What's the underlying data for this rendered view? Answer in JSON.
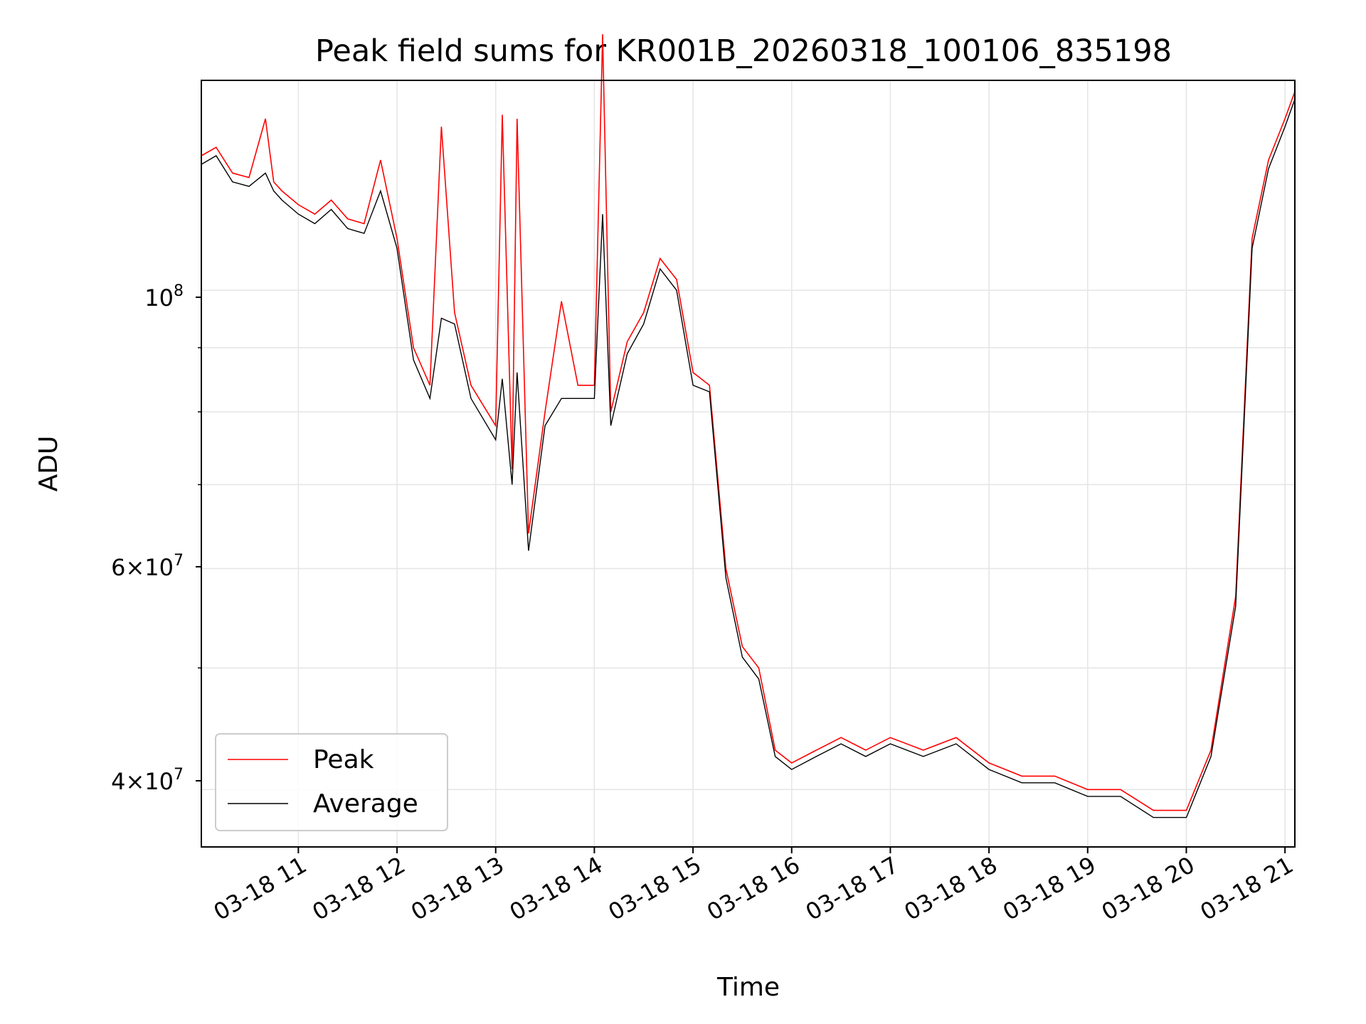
{
  "chart_data": {
    "type": "line",
    "title": "Peak field sums for KR001B_20260318_100106_835198",
    "xlabel": "Time",
    "ylabel": "ADU",
    "yscale": "log",
    "ylim": [
      36000000,
      147000000
    ],
    "xlim": [
      "03-18 10:01",
      "03-18 21:06"
    ],
    "grid": true,
    "legend_position": "lower-left",
    "x_tick_labels": [
      "03-18 11",
      "03-18 12",
      "03-18 13",
      "03-18 14",
      "03-18 15",
      "03-18 16",
      "03-18 17",
      "03-18 18",
      "03-18 19",
      "03-18 20",
      "03-18 21"
    ],
    "y_tick_labels": [
      "10^8",
      "6×10^7",
      "4×10^7"
    ],
    "series": [
      {
        "name": "Peak",
        "color": "#ff0000",
        "x": [
          "03-18 10:01",
          "03-18 10:10",
          "03-18 10:20",
          "03-18 10:30",
          "03-18 10:40",
          "03-18 10:45",
          "03-18 10:50",
          "03-18 11:00",
          "03-18 11:10",
          "03-18 11:20",
          "03-18 11:30",
          "03-18 11:40",
          "03-18 11:50",
          "03-18 12:00",
          "03-18 12:10",
          "03-18 12:20",
          "03-18 12:27",
          "03-18 12:35",
          "03-18 12:45",
          "03-18 13:00",
          "03-18 13:04",
          "03-18 13:10",
          "03-18 13:13",
          "03-18 13:20",
          "03-18 13:30",
          "03-18 13:40",
          "03-18 13:50",
          "03-18 14:00",
          "03-18 14:05",
          "03-18 14:10",
          "03-18 14:20",
          "03-18 14:30",
          "03-18 14:40",
          "03-18 14:50",
          "03-18 15:00",
          "03-18 15:10",
          "03-18 15:20",
          "03-18 15:30",
          "03-18 15:40",
          "03-18 15:50",
          "03-18 16:00",
          "03-18 16:15",
          "03-18 16:30",
          "03-18 16:45",
          "03-18 17:00",
          "03-18 17:20",
          "03-18 17:40",
          "03-18 18:00",
          "03-18 18:20",
          "03-18 18:40",
          "03-18 19:00",
          "03-18 19:20",
          "03-18 19:40",
          "03-18 20:00",
          "03-18 20:15",
          "03-18 20:30",
          "03-18 20:40",
          "03-18 20:50",
          "03-18 21:00",
          "03-18 21:06"
        ],
        "y": [
          128000000,
          130000000,
          124000000,
          123000000,
          137000000,
          122000000,
          120000000,
          117000000,
          115000000,
          118000000,
          114000000,
          113000000,
          127000000,
          110000000,
          90000000,
          84000000,
          135000000,
          96000000,
          84000000,
          78000000,
          138000000,
          72000000,
          137000000,
          64000000,
          80000000,
          98000000,
          84000000,
          84000000,
          160000000,
          80000000,
          91000000,
          96000000,
          106000000,
          102000000,
          86000000,
          84000000,
          60000000,
          52000000,
          50000000,
          43000000,
          42000000,
          43000000,
          44000000,
          43000000,
          44000000,
          43000000,
          44000000,
          42000000,
          41000000,
          41000000,
          40000000,
          40000000,
          38500000,
          38500000,
          43000000,
          57000000,
          110000000,
          127000000,
          137000000,
          144000000
        ]
      },
      {
        "name": "Average",
        "color": "#000000",
        "x": [
          "03-18 10:01",
          "03-18 10:10",
          "03-18 10:20",
          "03-18 10:30",
          "03-18 10:40",
          "03-18 10:45",
          "03-18 10:50",
          "03-18 11:00",
          "03-18 11:10",
          "03-18 11:20",
          "03-18 11:30",
          "03-18 11:40",
          "03-18 11:50",
          "03-18 12:00",
          "03-18 12:10",
          "03-18 12:20",
          "03-18 12:27",
          "03-18 12:35",
          "03-18 12:45",
          "03-18 13:00",
          "03-18 13:04",
          "03-18 13:10",
          "03-18 13:13",
          "03-18 13:20",
          "03-18 13:30",
          "03-18 13:40",
          "03-18 13:50",
          "03-18 14:00",
          "03-18 14:05",
          "03-18 14:10",
          "03-18 14:20",
          "03-18 14:30",
          "03-18 14:40",
          "03-18 14:50",
          "03-18 15:00",
          "03-18 15:10",
          "03-18 15:20",
          "03-18 15:30",
          "03-18 15:40",
          "03-18 15:50",
          "03-18 16:00",
          "03-18 16:15",
          "03-18 16:30",
          "03-18 16:45",
          "03-18 17:00",
          "03-18 17:20",
          "03-18 17:40",
          "03-18 18:00",
          "03-18 18:20",
          "03-18 18:40",
          "03-18 19:00",
          "03-18 19:20",
          "03-18 19:40",
          "03-18 20:00",
          "03-18 20:15",
          "03-18 20:30",
          "03-18 20:40",
          "03-18 20:50",
          "03-18 21:00",
          "03-18 21:06"
        ],
        "y": [
          126000000,
          128000000,
          122000000,
          121000000,
          124000000,
          120000000,
          118000000,
          115000000,
          113000000,
          116000000,
          112000000,
          111000000,
          120000000,
          108000000,
          88000000,
          82000000,
          95000000,
          94000000,
          82000000,
          76000000,
          85000000,
          70000000,
          86000000,
          62000000,
          78000000,
          82000000,
          82000000,
          82000000,
          115000000,
          78000000,
          89000000,
          94000000,
          104000000,
          100000000,
          84000000,
          83000000,
          59000000,
          51000000,
          49000000,
          42500000,
          41500000,
          42500000,
          43500000,
          42500000,
          43500000,
          42500000,
          43500000,
          41500000,
          40500000,
          40500000,
          39500000,
          39500000,
          38000000,
          38000000,
          42500000,
          56000000,
          108000000,
          125000000,
          135000000,
          142000000
        ]
      }
    ]
  }
}
